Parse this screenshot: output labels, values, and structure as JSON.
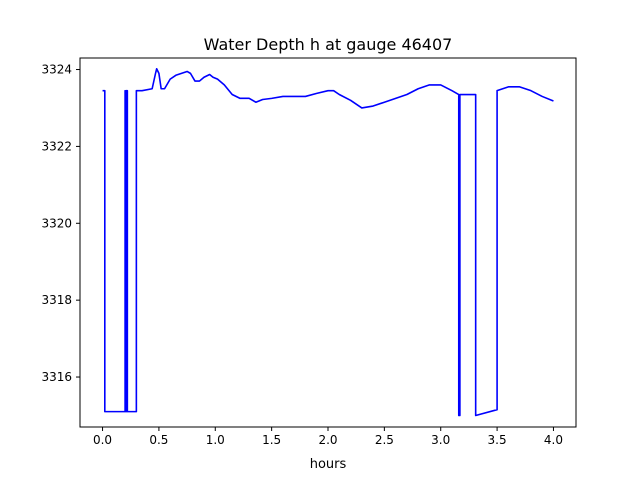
{
  "chart_data": {
    "type": "line",
    "title": "Water Depth h at gauge 46407",
    "xlabel": "hours",
    "ylabel": "",
    "xlim": [
      -0.2,
      4.2
    ],
    "ylim": [
      3314.7,
      3324.3
    ],
    "xticks": [
      0.0,
      0.5,
      1.0,
      1.5,
      2.0,
      2.5,
      3.0,
      3.5,
      4.0
    ],
    "xtick_labels": [
      "0.0",
      "0.5",
      "1.0",
      "1.5",
      "2.0",
      "2.5",
      "3.0",
      "3.5",
      "4.0"
    ],
    "yticks": [
      3316,
      3318,
      3320,
      3322,
      3324
    ],
    "ytick_labels": [
      "3316",
      "3318",
      "3320",
      "3322",
      "3324"
    ],
    "grid": false,
    "colors": {
      "line": "#0000ff",
      "axes": "#000000",
      "background": "#ffffff"
    },
    "series": [
      {
        "color": "#0000ff",
        "x": [
          0.0,
          0.02,
          0.02,
          0.2,
          0.2,
          0.21,
          0.21,
          0.22,
          0.22,
          0.3,
          0.3,
          0.35,
          0.44,
          0.47,
          0.48,
          0.5,
          0.52,
          0.55,
          0.6,
          0.65,
          0.7,
          0.75,
          0.78,
          0.82,
          0.86,
          0.9,
          0.95,
          0.98,
          1.02,
          1.08,
          1.15,
          1.22,
          1.3,
          1.36,
          1.42,
          1.5,
          1.6,
          1.7,
          1.8,
          1.9,
          2.0,
          2.05,
          2.1,
          2.2,
          2.3,
          2.4,
          2.5,
          2.6,
          2.7,
          2.8,
          2.9,
          3.0,
          3.1,
          3.16,
          3.16,
          3.17,
          3.17,
          3.23,
          3.31,
          3.31,
          3.5,
          3.5,
          3.55,
          3.6,
          3.7,
          3.8,
          3.9,
          4.0
        ],
        "y": [
          3323.45,
          3323.45,
          3315.1,
          3315.1,
          3323.45,
          3315.1,
          3323.45,
          3323.45,
          3315.1,
          3315.1,
          3323.45,
          3323.45,
          3323.5,
          3323.9,
          3324.02,
          3323.9,
          3323.5,
          3323.5,
          3323.75,
          3323.85,
          3323.9,
          3323.95,
          3323.9,
          3323.7,
          3323.7,
          3323.8,
          3323.87,
          3323.8,
          3323.75,
          3323.6,
          3323.35,
          3323.25,
          3323.25,
          3323.15,
          3323.22,
          3323.25,
          3323.3,
          3323.3,
          3323.3,
          3323.38,
          3323.45,
          3323.45,
          3323.35,
          3323.2,
          3323.0,
          3323.05,
          3323.15,
          3323.25,
          3323.35,
          3323.5,
          3323.6,
          3323.6,
          3323.45,
          3323.35,
          3315.0,
          3315.0,
          3323.35,
          3323.35,
          3323.35,
          3315.0,
          3315.15,
          3323.45,
          3323.5,
          3323.55,
          3323.55,
          3323.45,
          3323.3,
          3323.18
        ]
      }
    ]
  }
}
